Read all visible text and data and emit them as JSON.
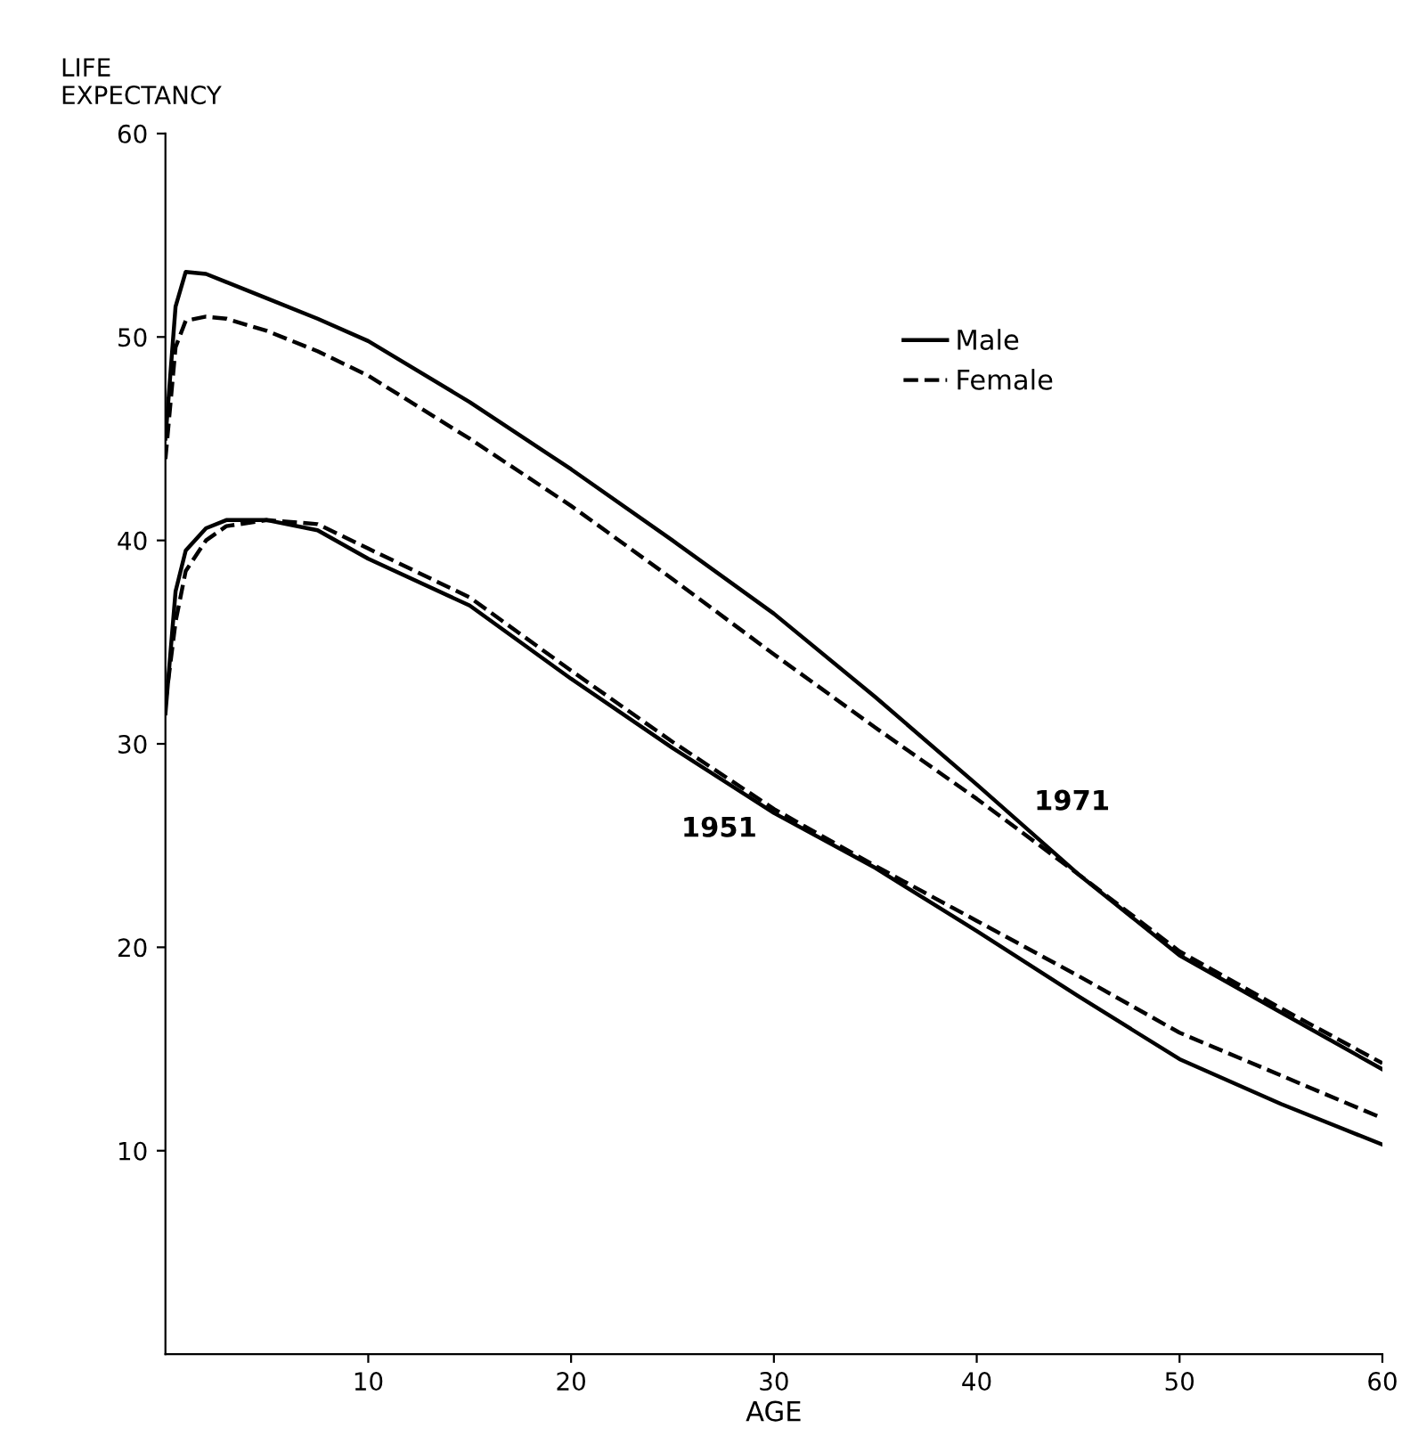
{
  "chart_data": {
    "type": "line",
    "xlabel": "AGE",
    "ylabel": "LIFE\nEXPECTANCY",
    "xlim": [
      0,
      60
    ],
    "ylim": [
      0,
      60
    ],
    "xticks": [
      10,
      20,
      30,
      40,
      50,
      60
    ],
    "yticks": [
      10,
      20,
      30,
      40,
      50,
      60
    ],
    "x": [
      0,
      0.5,
      1,
      2,
      3,
      5,
      7.5,
      10,
      15,
      20,
      25,
      30,
      35,
      40,
      45,
      50,
      55,
      60
    ],
    "series": [
      {
        "name": "Male",
        "color": "#000000",
        "line_style": "solid",
        "values": [
          45,
          51.5,
          53.2,
          53.1,
          52.7,
          51.9,
          50.9,
          49.8,
          46.8,
          43.5,
          40.0,
          36.4,
          32.3,
          28.0,
          23.6,
          19.6,
          16.8,
          14.0
        ]
      },
      {
        "name": "Female",
        "color": "#000000",
        "line_style": "dashed",
        "values": [
          44,
          49.5,
          50.8,
          51.0,
          50.9,
          50.3,
          49.3,
          48.1,
          45.0,
          41.7,
          38.1,
          34.4,
          30.8,
          27.3,
          23.6,
          19.8,
          17.0,
          14.3
        ]
      },
      {
        "color": "#000000",
        "line_style": "solid",
        "values": [
          31.5,
          37.5,
          39.5,
          40.6,
          41.0,
          41.0,
          40.5,
          39.1,
          36.8,
          33.2,
          29.8,
          26.6,
          23.9,
          20.8,
          17.6,
          14.5,
          12.3,
          10.3
        ]
      },
      {
        "color": "#000000",
        "line_style": "dashed",
        "values": [
          32,
          36,
          38.5,
          40.0,
          40.7,
          41.0,
          40.8,
          39.6,
          37.2,
          33.6,
          30.1,
          26.8,
          24.0,
          21.3,
          18.6,
          15.8,
          13.7,
          11.6
        ]
      }
    ],
    "annotations": [
      "1951",
      "1971"
    ],
    "legend": "top right",
    "grid": false,
    "marker": "none"
  }
}
